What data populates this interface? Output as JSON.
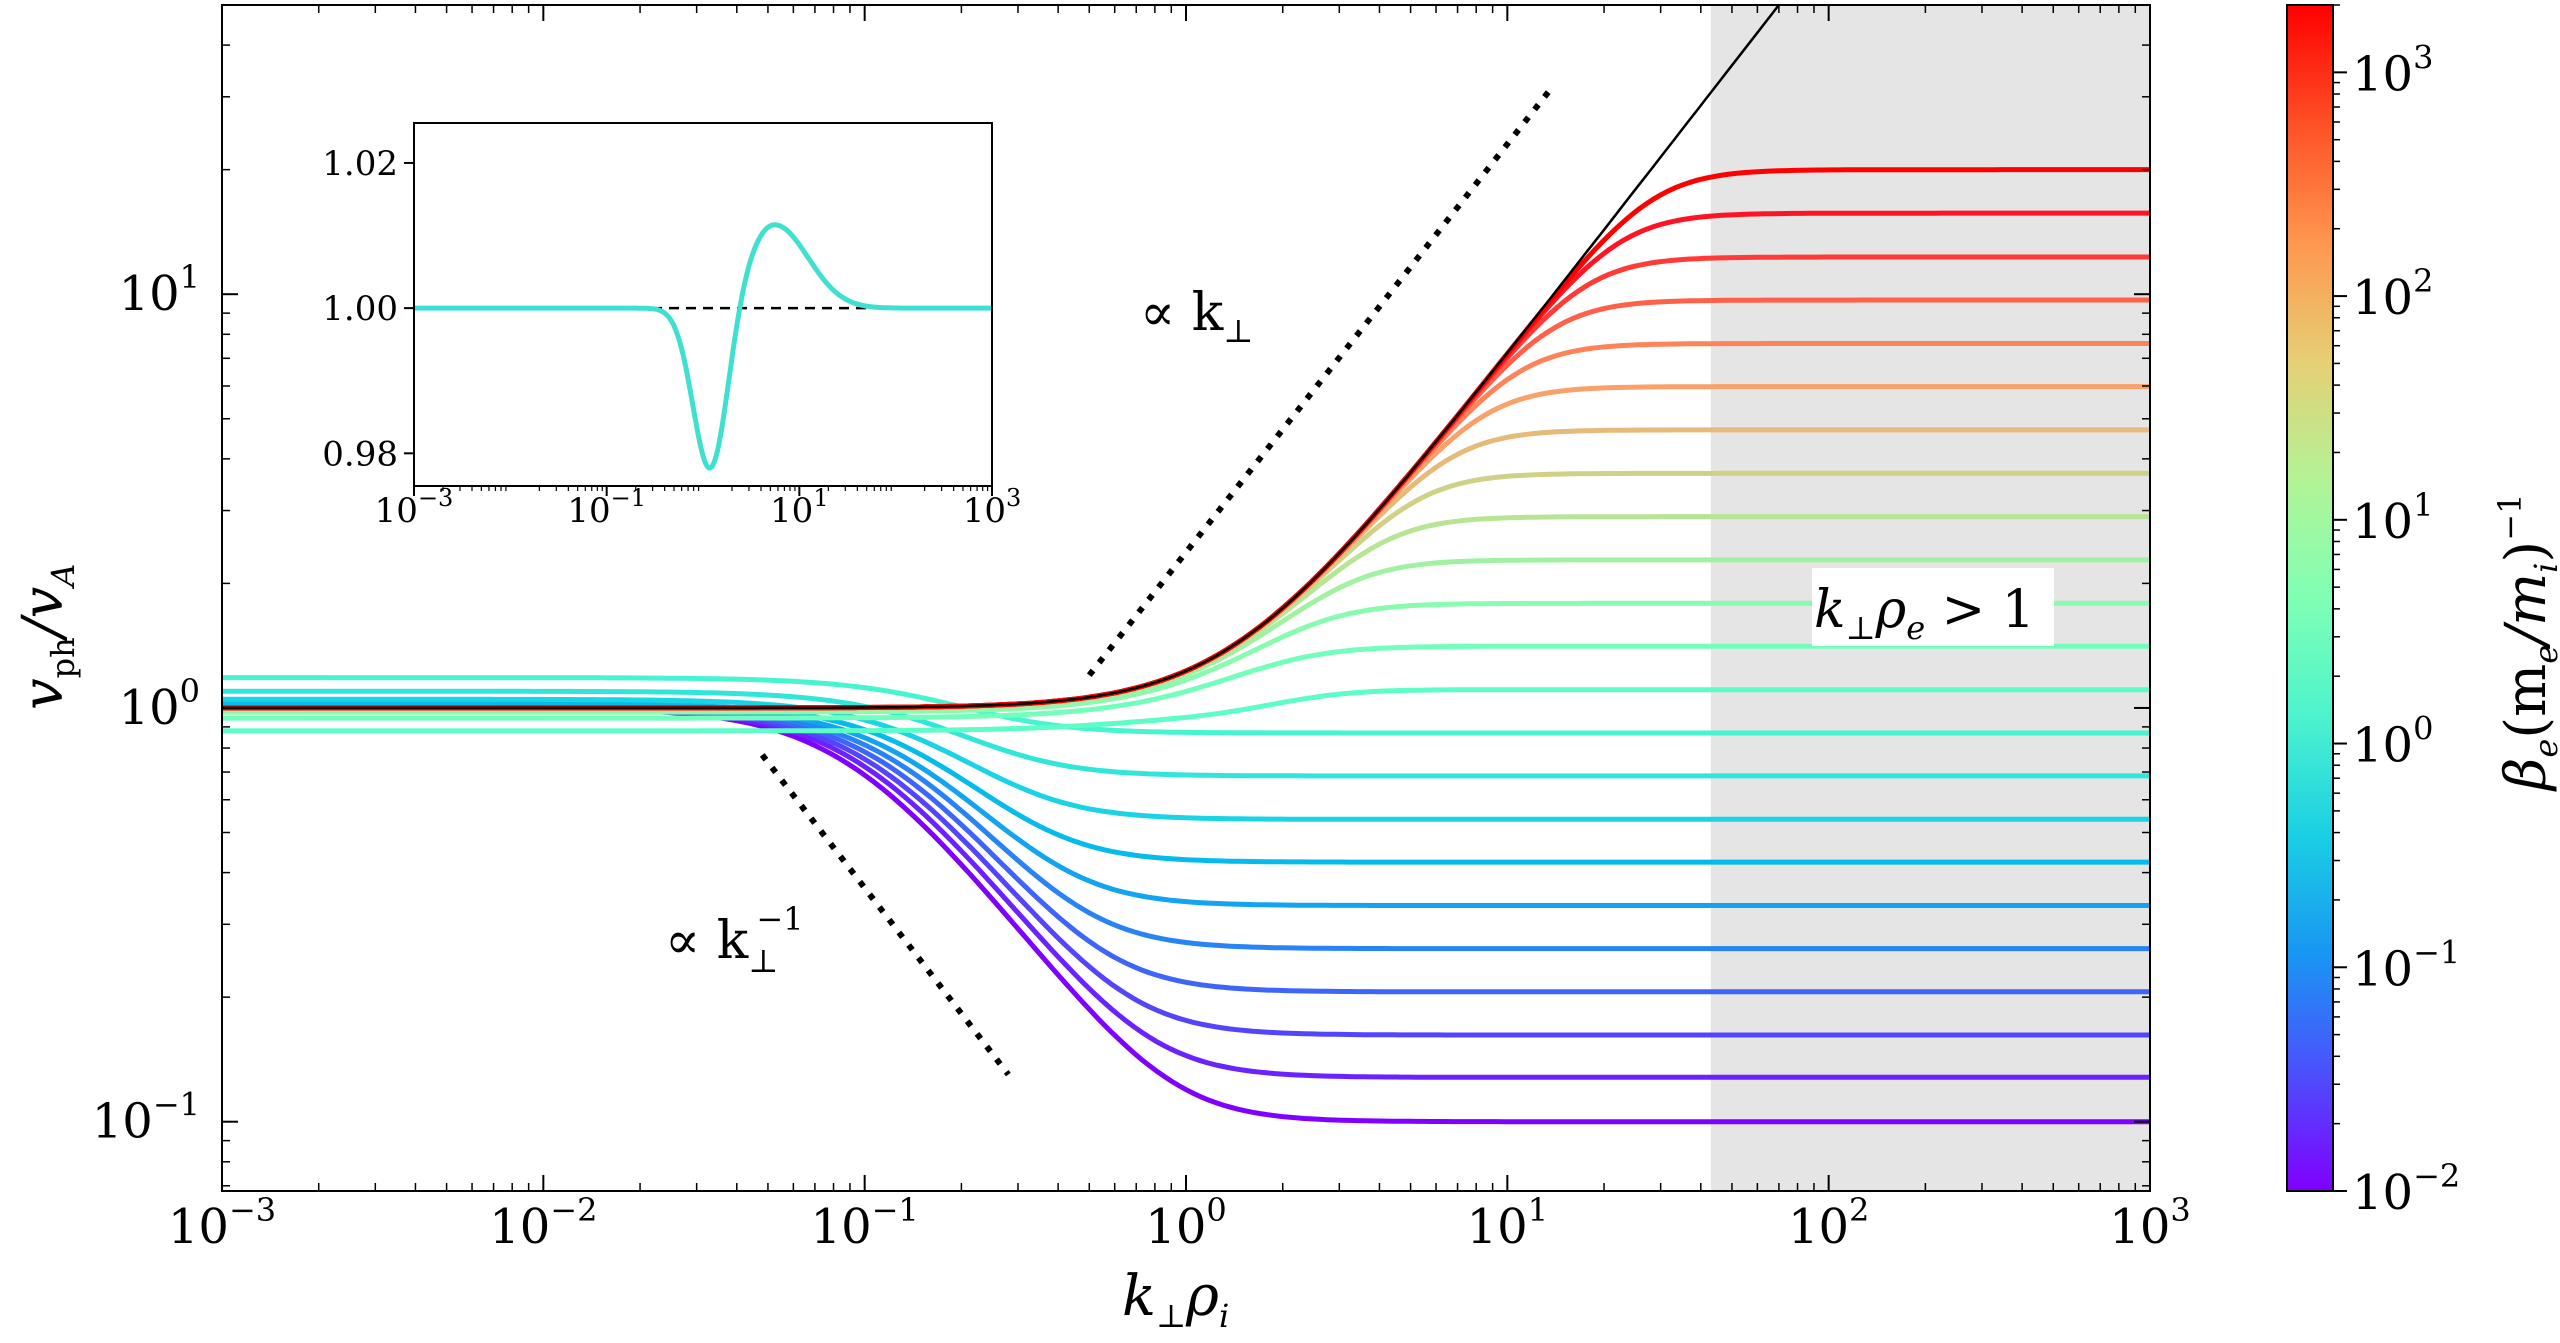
{
  "chart_data": {
    "type": "line",
    "xscale": "log",
    "yscale": "log",
    "xlim": [
      0.001,
      1000
    ],
    "ylim": [
      0.068,
      50
    ],
    "xlabel": {
      "base": "k",
      "sub1": "⊥",
      "mid": "ρ",
      "sub2": "i"
    },
    "ylabel": {
      "base": "v",
      "sub1": "ph",
      "mid": "/v",
      "sub2": "A"
    },
    "x_ticks": [
      {
        "value": 0.001,
        "base": "10",
        "exp": "−3"
      },
      {
        "value": 0.01,
        "base": "10",
        "exp": "−2"
      },
      {
        "value": 0.1,
        "base": "10",
        "exp": "−1"
      },
      {
        "value": 1,
        "base": "10",
        "exp": "0"
      },
      {
        "value": 10,
        "base": "10",
        "exp": "1"
      },
      {
        "value": 100,
        "base": "10",
        "exp": "2"
      },
      {
        "value": 1000,
        "base": "10",
        "exp": "3"
      }
    ],
    "y_ticks": [
      {
        "value": 0.1,
        "base": "10",
        "exp": "−1"
      },
      {
        "value": 1,
        "base": "10",
        "exp": "0"
      },
      {
        "value": 10,
        "base": "10",
        "exp": "1"
      }
    ],
    "shaded_region": {
      "x_from": 43,
      "x_to": 1000,
      "label": {
        "text": "k",
        "sub": "⊥",
        "mid": "ρ",
        "sub2": "e",
        "tail": " > 1"
      }
    },
    "series": [
      {
        "beta": 0.01,
        "color": "#8000ff",
        "plateau": 0.1
      },
      {
        "beta": 0.0162,
        "color": "#6a22fe",
        "plateau": 0.128
      },
      {
        "beta": 0.0264,
        "color": "#5444fd",
        "plateau": 0.162
      },
      {
        "beta": 0.0428,
        "color": "#3e65fa",
        "plateau": 0.206
      },
      {
        "beta": 0.0695,
        "color": "#2884f6",
        "plateau": 0.262
      },
      {
        "beta": 0.113,
        "color": "#12a3f1",
        "plateau": 0.333
      },
      {
        "beta": 0.183,
        "color": "#04bbec",
        "plateau": 0.424
      },
      {
        "beta": 0.298,
        "color": "#1ad3e4",
        "plateau": 0.538
      },
      {
        "beta": 0.483,
        "color": "#30e6db",
        "plateau": 0.685
      },
      {
        "beta": 0.785,
        "color": "#46f4d1",
        "plateau": 0.87
      },
      {
        "beta": 1.27,
        "color": "#5cfdc6",
        "plateau": 1.107
      },
      {
        "beta": 2.07,
        "color": "#72ffbb",
        "plateau": 1.41
      },
      {
        "beta": 3.36,
        "color": "#88fbaf",
        "plateau": 1.79
      },
      {
        "beta": 5.46,
        "color": "#a0f2a2",
        "plateau": 2.28
      },
      {
        "beta": 8.86,
        "color": "#b8e495",
        "plateau": 2.9
      },
      {
        "beta": 14.4,
        "color": "#cfd187",
        "plateau": 3.69
      },
      {
        "beta": 23.4,
        "color": "#e6ba78",
        "plateau": 4.7
      },
      {
        "beta": 37.9,
        "color": "#faa069",
        "plateau": 5.98
      },
      {
        "beta": 61.6,
        "color": "#ff8359",
        "plateau": 7.6
      },
      {
        "beta": 100,
        "color": "#ff6048",
        "plateau": 9.68
      },
      {
        "beta": 162,
        "color": "#ff3a37",
        "plateau": 12.3
      },
      {
        "beta": 264,
        "color": "#ff1424",
        "plateau": 15.7
      },
      {
        "beta": 428,
        "color": "#ff0000",
        "plateau": 20
      }
    ],
    "envelope": {
      "color": "#000000",
      "description": "∝ k⊥ limit"
    },
    "guide_slopes": [
      {
        "label": {
          "text": "∝ k",
          "sub": "⊥",
          "exp": ""
        },
        "slope": 1,
        "x_from": 0.5,
        "x_to": 13.5,
        "y_from": 1.2,
        "y_to": 31
      },
      {
        "label": {
          "text": "∝ k",
          "sub": "⊥",
          "exp": "−1"
        },
        "slope": -1,
        "x_from": 0.048,
        "x_to": 0.28,
        "y_from": 0.77,
        "y_to": 0.13
      }
    ],
    "inset": {
      "type": "line",
      "xscale": "log",
      "xlim": [
        0.001,
        1000
      ],
      "ylim": [
        0.9755,
        1.0255
      ],
      "x_ticks": [
        {
          "value": 0.001,
          "base": "10",
          "exp": "−3"
        },
        {
          "value": 0.1,
          "base": "10",
          "exp": "−1"
        },
        {
          "value": 10,
          "base": "10",
          "exp": "1"
        },
        {
          "value": 1000,
          "base": "10",
          "exp": "3"
        }
      ],
      "y_ticks": [
        {
          "value": 0.98,
          "label": "0.98"
        },
        {
          "value": 1.0,
          "label": "1.00"
        },
        {
          "value": 1.02,
          "label": "1.02"
        }
      ],
      "curve_color": "#40e0d0",
      "reference_line": {
        "value": 1.0,
        "style": "dashed"
      },
      "min_point": {
        "x": 1.2,
        "y": 0.977
      },
      "max_point": {
        "x": 5.5,
        "y": 1.0115
      }
    },
    "colorbar": {
      "label": {
        "beta": "β",
        "beta_sub": "e",
        "paren": "(m",
        "m1_sub": "e",
        "slash": "/m",
        "m2_sub": "i",
        "close": ")",
        "exp": "−1"
      },
      "range": [
        0.01,
        2000
      ],
      "ticks": [
        {
          "value": 0.01,
          "base": "10",
          "exp": "−2"
        },
        {
          "value": 0.1,
          "base": "10",
          "exp": "−1"
        },
        {
          "value": 1,
          "base": "10",
          "exp": "0"
        },
        {
          "value": 10,
          "base": "10",
          "exp": "1"
        },
        {
          "value": 100,
          "base": "10",
          "exp": "2"
        },
        {
          "value": 1000,
          "base": "10",
          "exp": "3"
        }
      ],
      "colormap": "rainbow"
    }
  }
}
